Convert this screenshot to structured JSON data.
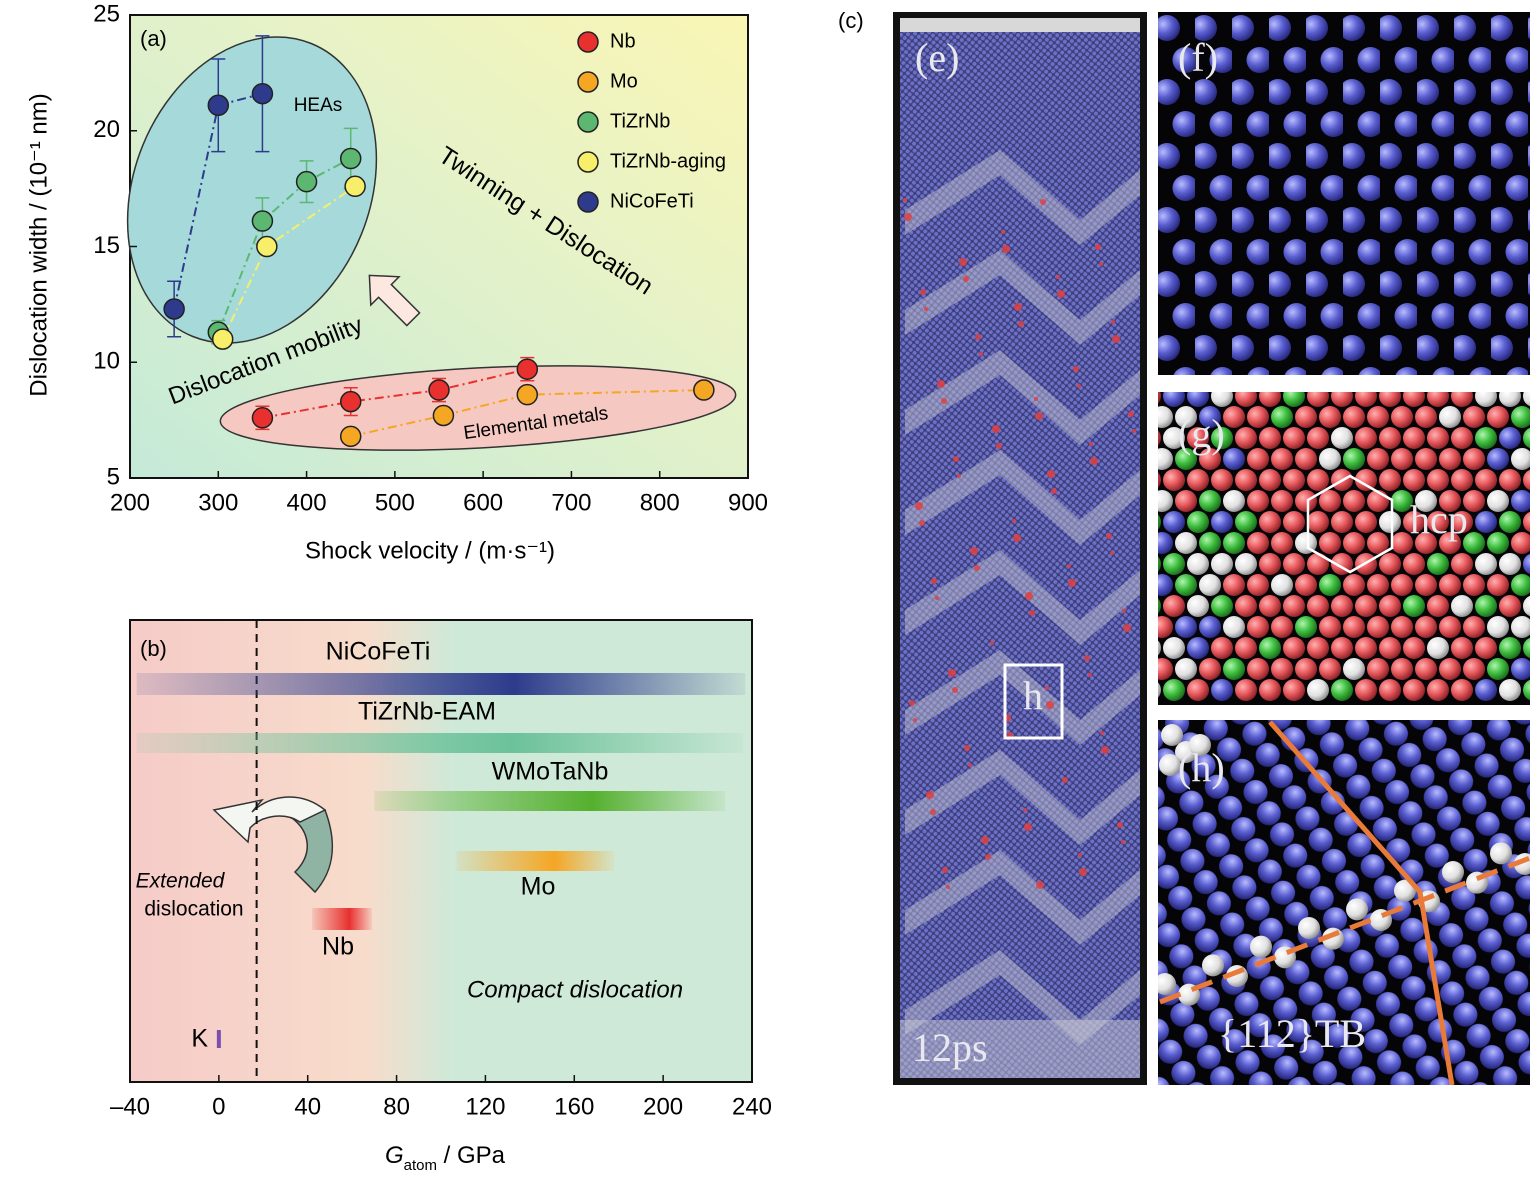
{
  "chart_data": [
    {
      "type": "scatter",
      "panel_label": "(a)",
      "xlabel": "Shock velocity / (m·s⁻¹)",
      "ylabel": "Dislocation width / (10⁻¹ nm)",
      "xlim": [
        200,
        900
      ],
      "xticks": [
        200,
        300,
        400,
        500,
        600,
        700,
        800,
        900
      ],
      "ylim": [
        5,
        25
      ],
      "yticks": [
        5,
        10,
        15,
        20,
        25
      ],
      "annotations": [
        "HEAs",
        "Twinning + Dislocation",
        "Dislocation mobility",
        "Elemental metals"
      ],
      "series": [
        {
          "name": "Nb",
          "color": "#e8302f",
          "x": [
            350,
            450,
            550,
            650
          ],
          "y": [
            7.6,
            8.3,
            8.8,
            9.7
          ],
          "errors": [
            0.5,
            0.6,
            0.5,
            0.5
          ]
        },
        {
          "name": "Mo",
          "color": "#f5a623",
          "x": [
            450,
            555,
            650,
            850
          ],
          "y": [
            6.8,
            7.7,
            8.6,
            8.8
          ]
        },
        {
          "name": "TiZrNb",
          "color": "#5cb870",
          "x": [
            300,
            350,
            400,
            450
          ],
          "y": [
            11.3,
            16.1,
            17.8,
            18.8
          ],
          "errors": [
            0.5,
            1.0,
            0.9,
            1.3
          ]
        },
        {
          "name": "TiZrNb-aging",
          "color": "#f7ee6a",
          "x": [
            305,
            355,
            455
          ],
          "y": [
            11.0,
            15.0,
            17.6
          ]
        },
        {
          "name": "NiCoFeTi",
          "color": "#2e3a8c",
          "x": [
            250,
            300,
            350
          ],
          "y": [
            12.3,
            21.1,
            21.6
          ],
          "errors": [
            1.2,
            2.0,
            2.5
          ]
        }
      ]
    },
    {
      "type": "range_bar",
      "panel_label": "(b)",
      "xlabel": "G",
      "xlabel_subscript": "atom",
      "xlabel_unit": " / GPa",
      "xlim": [
        -40,
        240
      ],
      "xticks": [
        {
          "value": -40,
          "label": "–40"
        },
        0,
        40,
        80,
        120,
        160,
        200,
        240
      ],
      "boundary": 17,
      "annotations": [
        "Extended",
        "dislocation",
        "Compact dislocation"
      ],
      "bars": [
        {
          "name": "NiCoFeTi",
          "color": "#2e3b8c",
          "start": -37,
          "end": 237
        },
        {
          "name": "TiZrNb-EAM",
          "color": "#6cc29a",
          "start": -37,
          "end": 236
        },
        {
          "name": "WMoTaNb",
          "color": "#55b02e",
          "start": 70,
          "end": 228
        },
        {
          "name": "Mo",
          "color": "#f5a623",
          "start": 107,
          "end": 178
        },
        {
          "name": "Nb",
          "color": "#e8302f",
          "start": 42,
          "end": 69
        },
        {
          "name": "K",
          "color": "#7a4fb0",
          "start": 0,
          "end": 0
        }
      ]
    }
  ],
  "panels": {
    "c": "(c)",
    "e": "(e)",
    "e_time": "12ps",
    "e_box": "h",
    "f": "(f)",
    "g": "(g)",
    "g_hcp": "hcp",
    "h": "(h)",
    "h_tb": "{112}TB"
  }
}
